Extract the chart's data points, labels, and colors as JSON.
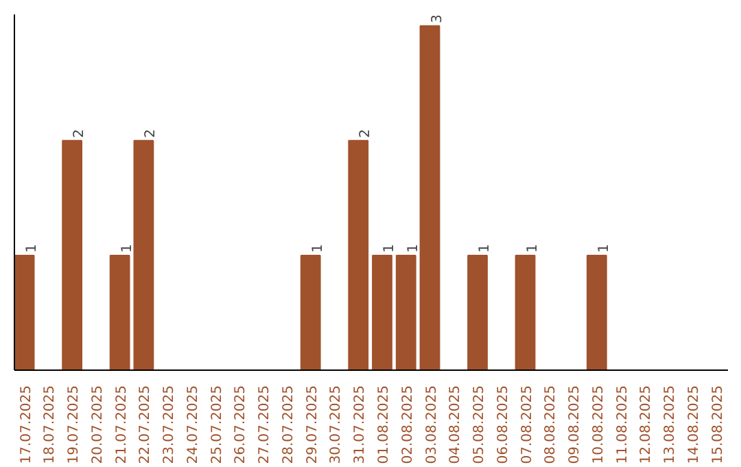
{
  "chart_data": {
    "type": "bar",
    "categories": [
      "17.07.2025",
      "18.07.2025",
      "19.07.2025",
      "20.07.2025",
      "21.07.2025",
      "22.07.2025",
      "23.07.2025",
      "24.07.2025",
      "25.07.2025",
      "26.07.2025",
      "27.07.2025",
      "28.07.2025",
      "29.07.2025",
      "30.07.2025",
      "31.07.2025",
      "01.08.2025",
      "02.08.2025",
      "03.08.2025",
      "04.08.2025",
      "05.08.2025",
      "06.08.2025",
      "07.08.2025",
      "08.08.2025",
      "09.08.2025",
      "10.08.2025",
      "11.08.2025",
      "12.08.2025",
      "13.08.2025",
      "14.08.2025",
      "15.08.2025"
    ],
    "values": [
      1,
      0,
      2,
      0,
      1,
      2,
      0,
      0,
      0,
      0,
      0,
      0,
      1,
      0,
      2,
      1,
      1,
      3,
      0,
      1,
      0,
      1,
      0,
      0,
      1,
      0,
      0,
      0,
      0,
      0
    ],
    "value_labels": [
      "1",
      null,
      "2",
      null,
      "1",
      "2",
      null,
      null,
      null,
      null,
      null,
      null,
      "1",
      null,
      "2",
      "1",
      "1",
      "3",
      null,
      "1",
      null,
      "1",
      null,
      null,
      "1",
      null,
      null,
      null,
      null,
      null
    ],
    "color": "#a0522d",
    "ylim": [
      0,
      3.1
    ],
    "tick_labels": "x",
    "grid": false
  }
}
